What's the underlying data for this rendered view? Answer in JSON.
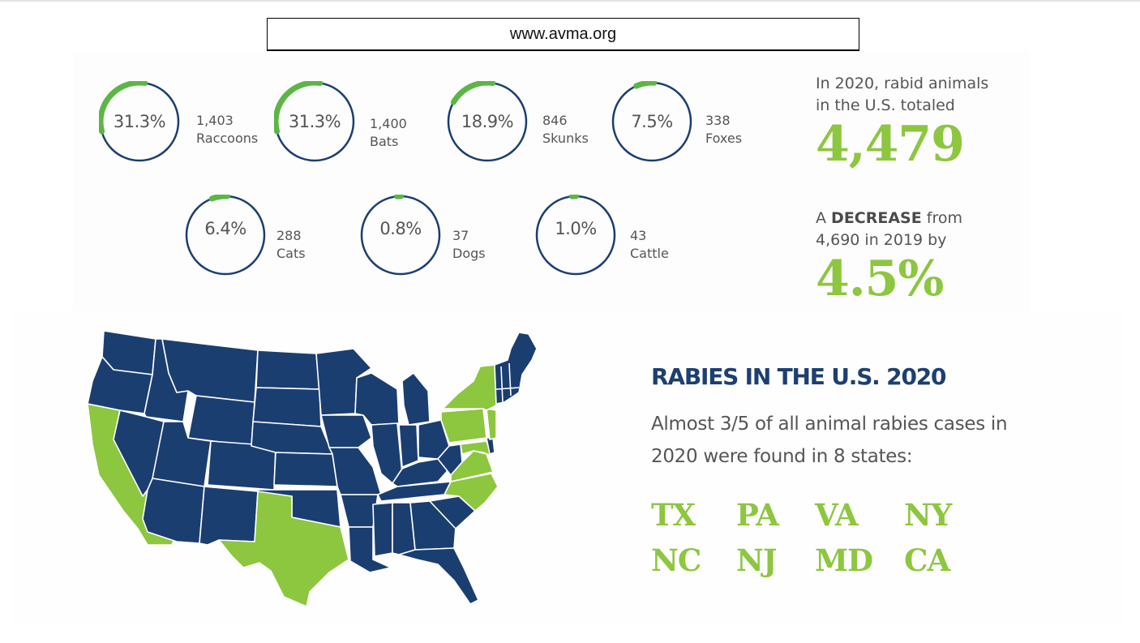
{
  "header": {
    "url": "www.avma.org"
  },
  "colors": {
    "navy": "#1b3e70",
    "green": "#8dc63f",
    "ring_green": "#5cb646",
    "text_gray": "#555557",
    "title_blue": "#1d3f72"
  },
  "stats": [
    {
      "percent": "31.3%",
      "count": "1,403",
      "animal": "Raccoons"
    },
    {
      "percent": "31.3%",
      "count": "1,400",
      "animal": "Bats"
    },
    {
      "percent": "18.9%",
      "count": "846",
      "animal": "Skunks"
    },
    {
      "percent": "7.5%",
      "count": "338",
      "animal": "Foxes"
    },
    {
      "percent": "6.4%",
      "count": "288",
      "animal": "Cats"
    },
    {
      "percent": "0.8%",
      "count": "37",
      "animal": "Dogs"
    },
    {
      "percent": "1.0%",
      "count": "43",
      "animal": "Cattle"
    }
  ],
  "summary": {
    "total_intro": "In 2020, rabid animals in the U.S. totaled",
    "total_value": "4,479",
    "decrease_prefix": "A",
    "decrease_word": "DECREASE",
    "decrease_suffix": "from 4,690 in 2019 by",
    "decrease_value": "4.5%"
  },
  "map_section": {
    "title": "RABIES IN THE U.S. 2020",
    "description": "Almost 3/5 of all animal rabies cases in 2020 were found in 8 states:",
    "states": [
      "TX",
      "PA",
      "VA",
      "NY",
      "NC",
      "NJ",
      "MD",
      "CA"
    ],
    "highlighted_states": [
      "CA",
      "TX",
      "NY",
      "PA",
      "NJ",
      "MD",
      "VA",
      "NC"
    ]
  },
  "chart_data": {
    "type": "pie",
    "title": "Rabid animals in the U.S., 2020",
    "total": 4479,
    "categories": [
      "Raccoons",
      "Bats",
      "Skunks",
      "Foxes",
      "Cats",
      "Dogs",
      "Cattle"
    ],
    "values": [
      1403,
      1400,
      846,
      338,
      288,
      37,
      43
    ],
    "percentages": [
      31.3,
      31.3,
      18.9,
      7.5,
      6.4,
      0.8,
      1.0
    ],
    "annotations": [
      "In 2020, rabid animals in the U.S. totaled 4,479",
      "A DECREASE from 4,690 in 2019 by 4.5%",
      "Almost 3/5 of all animal rabies cases in 2020 were found in 8 states: TX, PA, VA, NY, NC, NJ, MD, CA"
    ],
    "previous_year_total": 4690,
    "change_percent": -4.5
  }
}
